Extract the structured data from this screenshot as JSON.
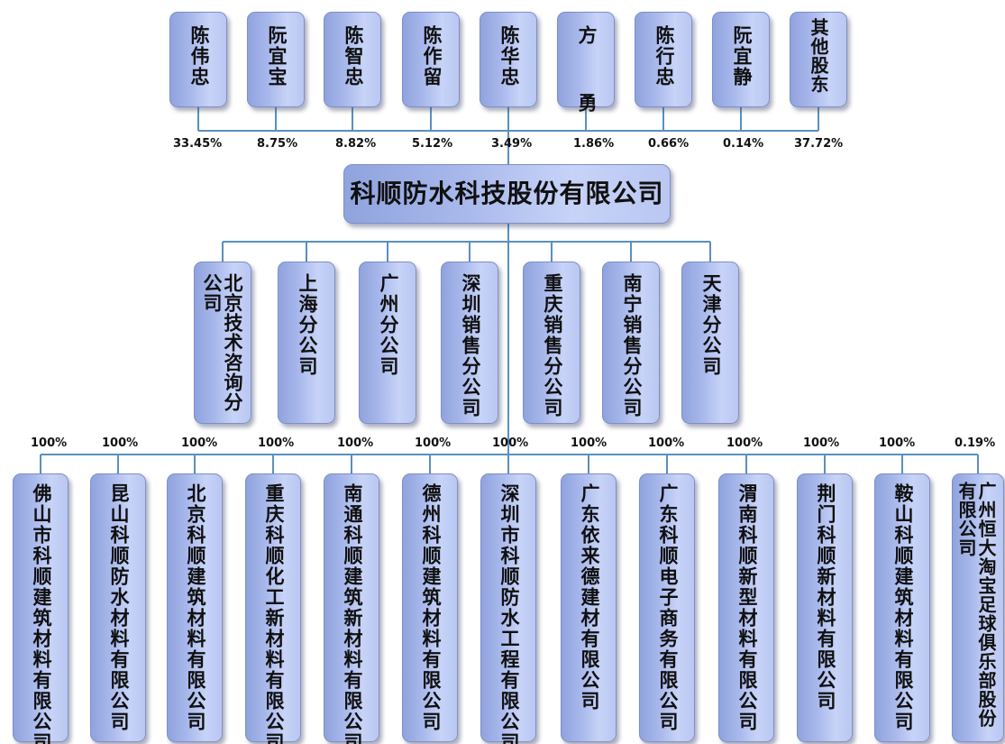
{
  "shareholders": [
    {
      "name": "陈伟忠",
      "pct": "33.45%"
    },
    {
      "name": "阮宜宝",
      "pct": "8.75%"
    },
    {
      "name": "陈智忠",
      "pct": "8.82%"
    },
    {
      "name": "陈作留",
      "pct": "5.12%"
    },
    {
      "name": "陈华忠",
      "pct": "3.49%"
    },
    {
      "name": "方  勇",
      "pct": "1.86%"
    },
    {
      "name": "陈行忠",
      "pct": "0.66%"
    },
    {
      "name": "阮宜静",
      "pct": "0.14%"
    },
    {
      "name": "其他股东",
      "pct": "37.72%"
    }
  ],
  "company": "科顺防水科技股份有限公司",
  "branches": [
    "北京技术咨询分公司",
    "上海分公司",
    "广州分公司",
    "深圳销售分公司",
    "重庆销售分公司",
    "南宁销售分公司",
    "天津分公司"
  ],
  "subsidiaries": [
    {
      "name": "佛山市科顺建筑材料有限公司",
      "pct": "100%"
    },
    {
      "name": "昆山科顺防水材料有限公司",
      "pct": "100%"
    },
    {
      "name": "北京科顺建筑材料有限公司",
      "pct": "100%"
    },
    {
      "name": "重庆科顺化工新材料有限公司",
      "pct": "100%"
    },
    {
      "name": "南通科顺建筑新材料有限公司",
      "pct": "100%"
    },
    {
      "name": "德州科顺建筑材料有限公司",
      "pct": "100%"
    },
    {
      "name": "深圳市科顺防水工程有限公司",
      "pct": "100%"
    },
    {
      "name": "广东依来德建材有限公司",
      "pct": "100%"
    },
    {
      "name": "广东科顺电子商务有限公司",
      "pct": "100%"
    },
    {
      "name": "渭南科顺新型材料有限公司",
      "pct": "100%"
    },
    {
      "name": "荆门科顺新材料有限公司",
      "pct": "100%"
    },
    {
      "name": "鞍山科顺建筑材料有限公司",
      "pct": "100%"
    },
    {
      "name": "广州恒大淘宝足球俱乐部股份有限公司",
      "pct": "0.19%"
    }
  ],
  "colors": {
    "line": "#5a8fc0",
    "box_edge": "#7e8fc6",
    "box_fill": "#a9b9ec"
  }
}
